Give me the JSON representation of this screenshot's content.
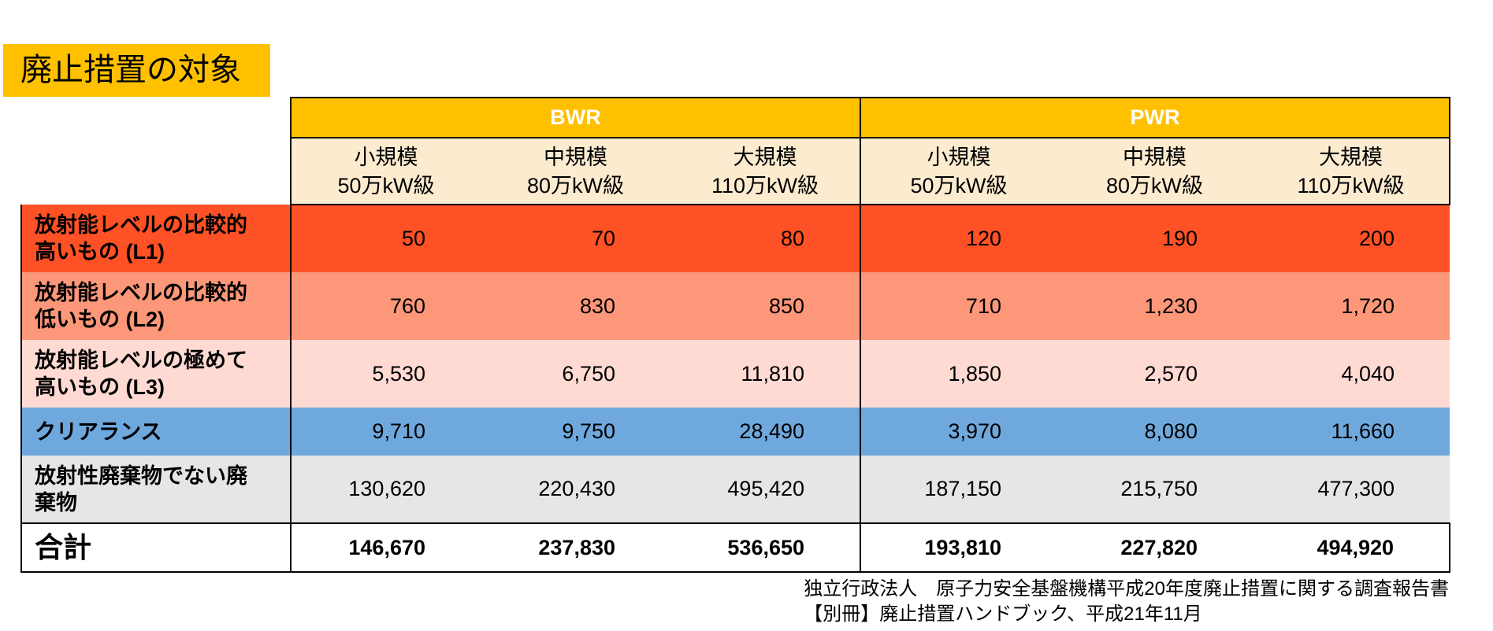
{
  "title": "廃止措置の対象",
  "chart_data": {
    "type": "table",
    "groups": [
      "BWR",
      "PWR"
    ],
    "columns": [
      {
        "group": "BWR",
        "size": "小規模",
        "class": "50万kW級"
      },
      {
        "group": "BWR",
        "size": "中規模",
        "class": "80万kW級"
      },
      {
        "group": "BWR",
        "size": "大規模",
        "class": "110万kW級"
      },
      {
        "group": "PWR",
        "size": "小規模",
        "class": "50万kW級"
      },
      {
        "group": "PWR",
        "size": "中規模",
        "class": "80万kW級"
      },
      {
        "group": "PWR",
        "size": "大規模",
        "class": "110万kW級"
      }
    ],
    "rows": [
      {
        "label_line1": "放射能レベルの比較的",
        "label_line2": "高いもの (L1)",
        "color": "#ff5126",
        "values": [
          "50",
          "70",
          "80",
          "120",
          "190",
          "200"
        ]
      },
      {
        "label_line1": "放射能レベルの比較的",
        "label_line2": "低いもの (L2)",
        "color": "#fd9779",
        "values": [
          "760",
          "830",
          "850",
          "710",
          "1,230",
          "1,720"
        ]
      },
      {
        "label_line1": "放射能レベルの極めて",
        "label_line2": "高いもの (L3)",
        "color": "#ffdad3",
        "values": [
          "5,530",
          "6,750",
          "11,810",
          "1,850",
          "2,570",
          "4,040"
        ]
      },
      {
        "label_line1": "クリアランス",
        "label_line2": "",
        "color": "#6fa8dc",
        "values": [
          "9,710",
          "9,750",
          "28,490",
          "3,970",
          "8,080",
          "11,660"
        ]
      },
      {
        "label_line1": "放射性廃棄物でない廃",
        "label_line2": "棄物",
        "color": "#e7e6e6",
        "values": [
          "130,620",
          "220,430",
          "495,420",
          "187,150",
          "215,750",
          "477,300"
        ]
      }
    ],
    "total": {
      "label": "合計",
      "values": [
        "146,670",
        "237,830",
        "536,650",
        "193,810",
        "227,820",
        "494,920"
      ]
    }
  },
  "source": {
    "line1": "独立行政法人　原子力安全基盤機構平成20年度廃止措置に関する調査報告書",
    "line2": "【別冊】廃止措置ハンドブック、平成21年11月"
  }
}
